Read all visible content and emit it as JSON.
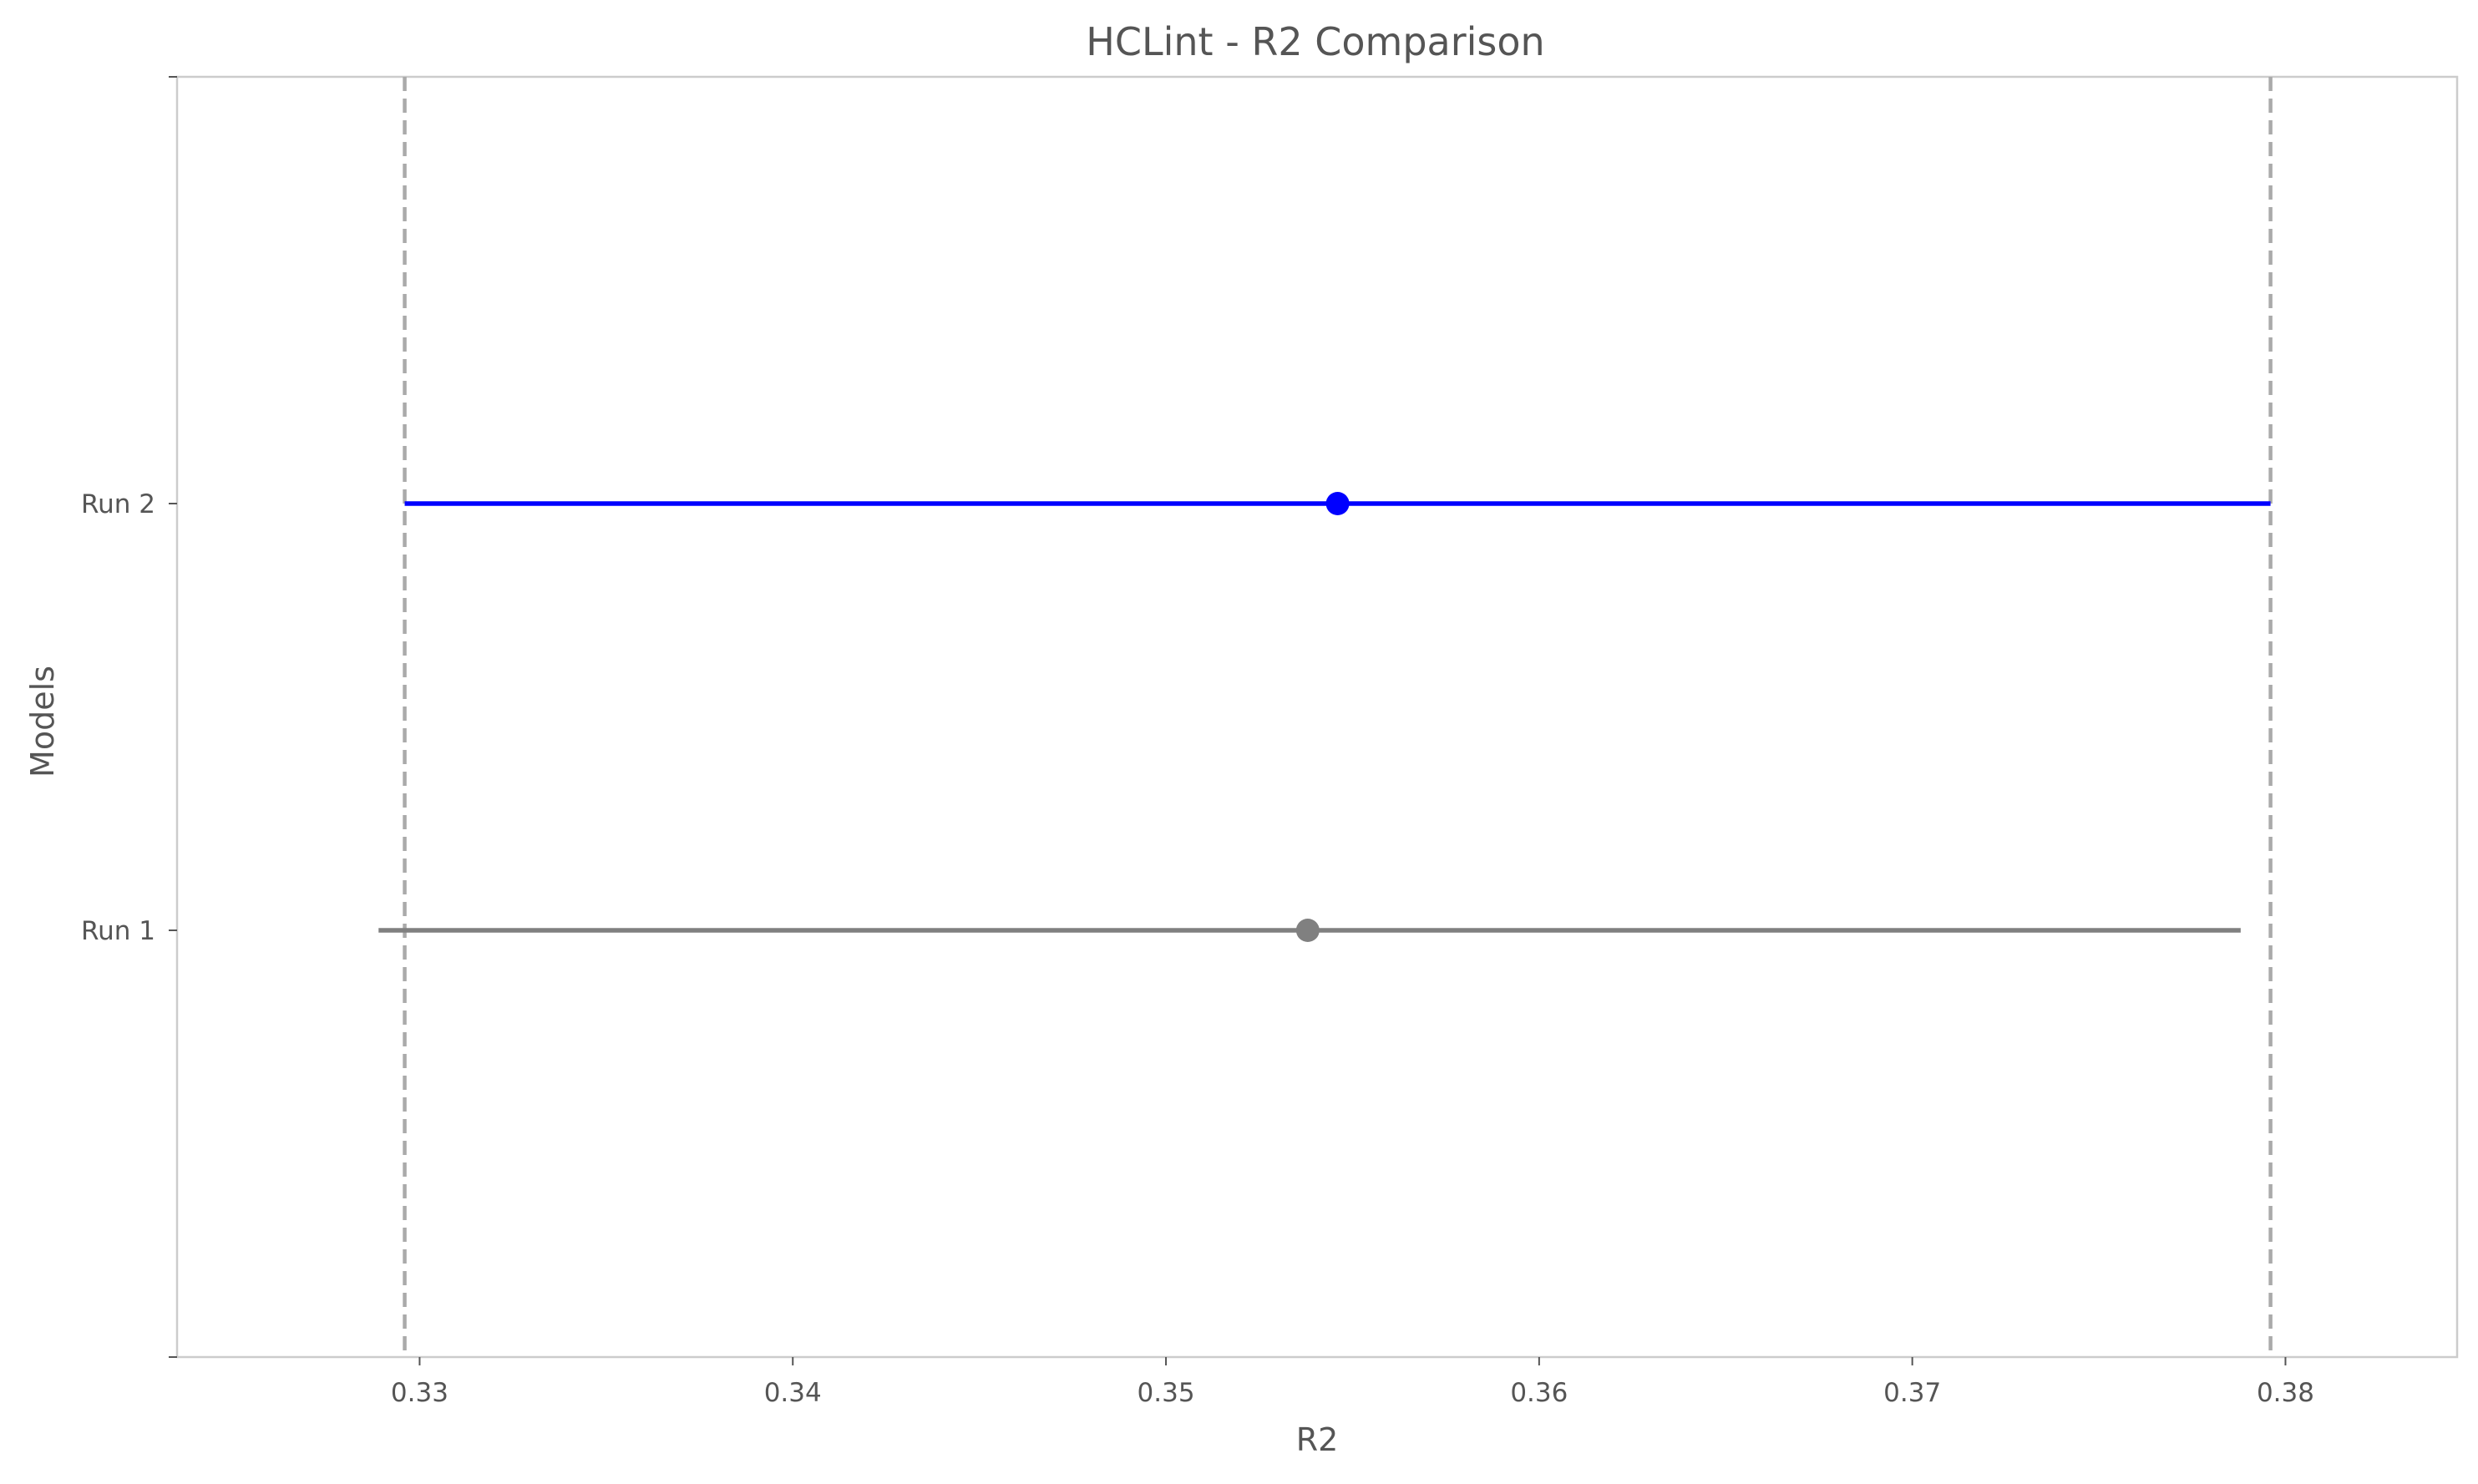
{
  "chart_data": {
    "type": "errorbar",
    "title": "HCLint  - R2 Comparison",
    "xlabel": "R2",
    "ylabel": "Models",
    "xlim": [
      0.3235,
      0.3846
    ],
    "xticks": [
      0.33,
      0.34,
      0.35,
      0.36,
      0.37,
      0.38
    ],
    "xtick_labels": [
      "0.33",
      "0.34",
      "0.35",
      "0.36",
      "0.37",
      "0.38"
    ],
    "categories": [
      "Run 1",
      "Run 2"
    ],
    "series": [
      {
        "category": "Run 1",
        "estimate": 0.3538,
        "ci_low": 0.3289,
        "ci_high": 0.3788,
        "color": "#808080"
      },
      {
        "category": "Run 2",
        "estimate": 0.3546,
        "ci_low": 0.3296,
        "ci_high": 0.3796,
        "color": "#0000ff"
      }
    ],
    "reference_lines": [
      0.3296,
      0.3796
    ],
    "reference_line_color": "#aaaaaa",
    "grid": false,
    "frame_color": "#cccccc",
    "text_color": "#555555"
  }
}
